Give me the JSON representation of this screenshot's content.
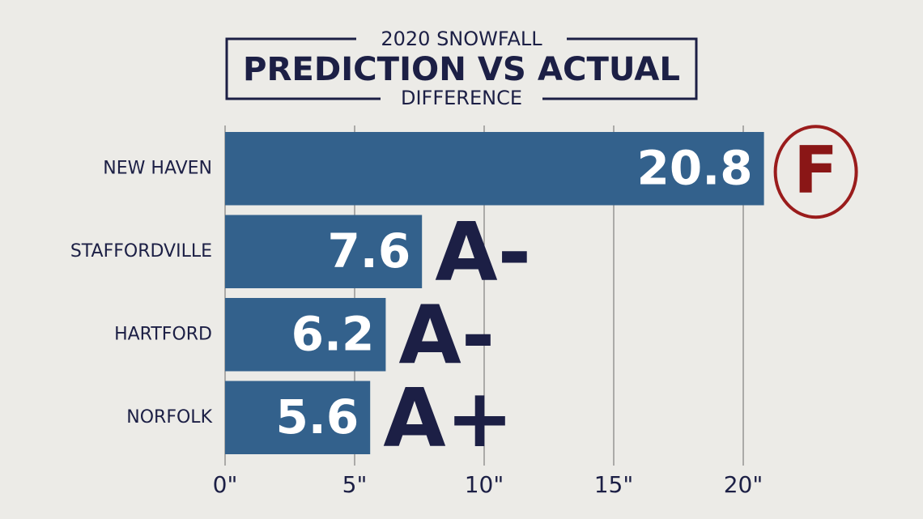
{
  "chart_data": {
    "type": "bar",
    "orientation": "horizontal",
    "title": "PREDICTION VS ACTUAL",
    "supertitle": "2020 SNOWFALL",
    "subtitle": "DIFFERENCE",
    "categories": [
      "NEW HAVEN",
      "STAFFORDVILLE",
      "HARTFORD",
      "NORFOLK"
    ],
    "values": [
      20.8,
      7.6,
      6.2,
      5.6
    ],
    "annotations": [
      "F",
      "A-",
      "A-",
      "A+"
    ],
    "color": "#33618c",
    "xlim": [
      0,
      21
    ],
    "xticks": [
      {
        "value": 0,
        "label": "0\""
      },
      {
        "value": 5,
        "label": "5\""
      },
      {
        "value": 10,
        "label": "10\""
      },
      {
        "value": 15,
        "label": "15\""
      },
      {
        "value": 20,
        "label": "20\""
      }
    ],
    "grid": true
  }
}
